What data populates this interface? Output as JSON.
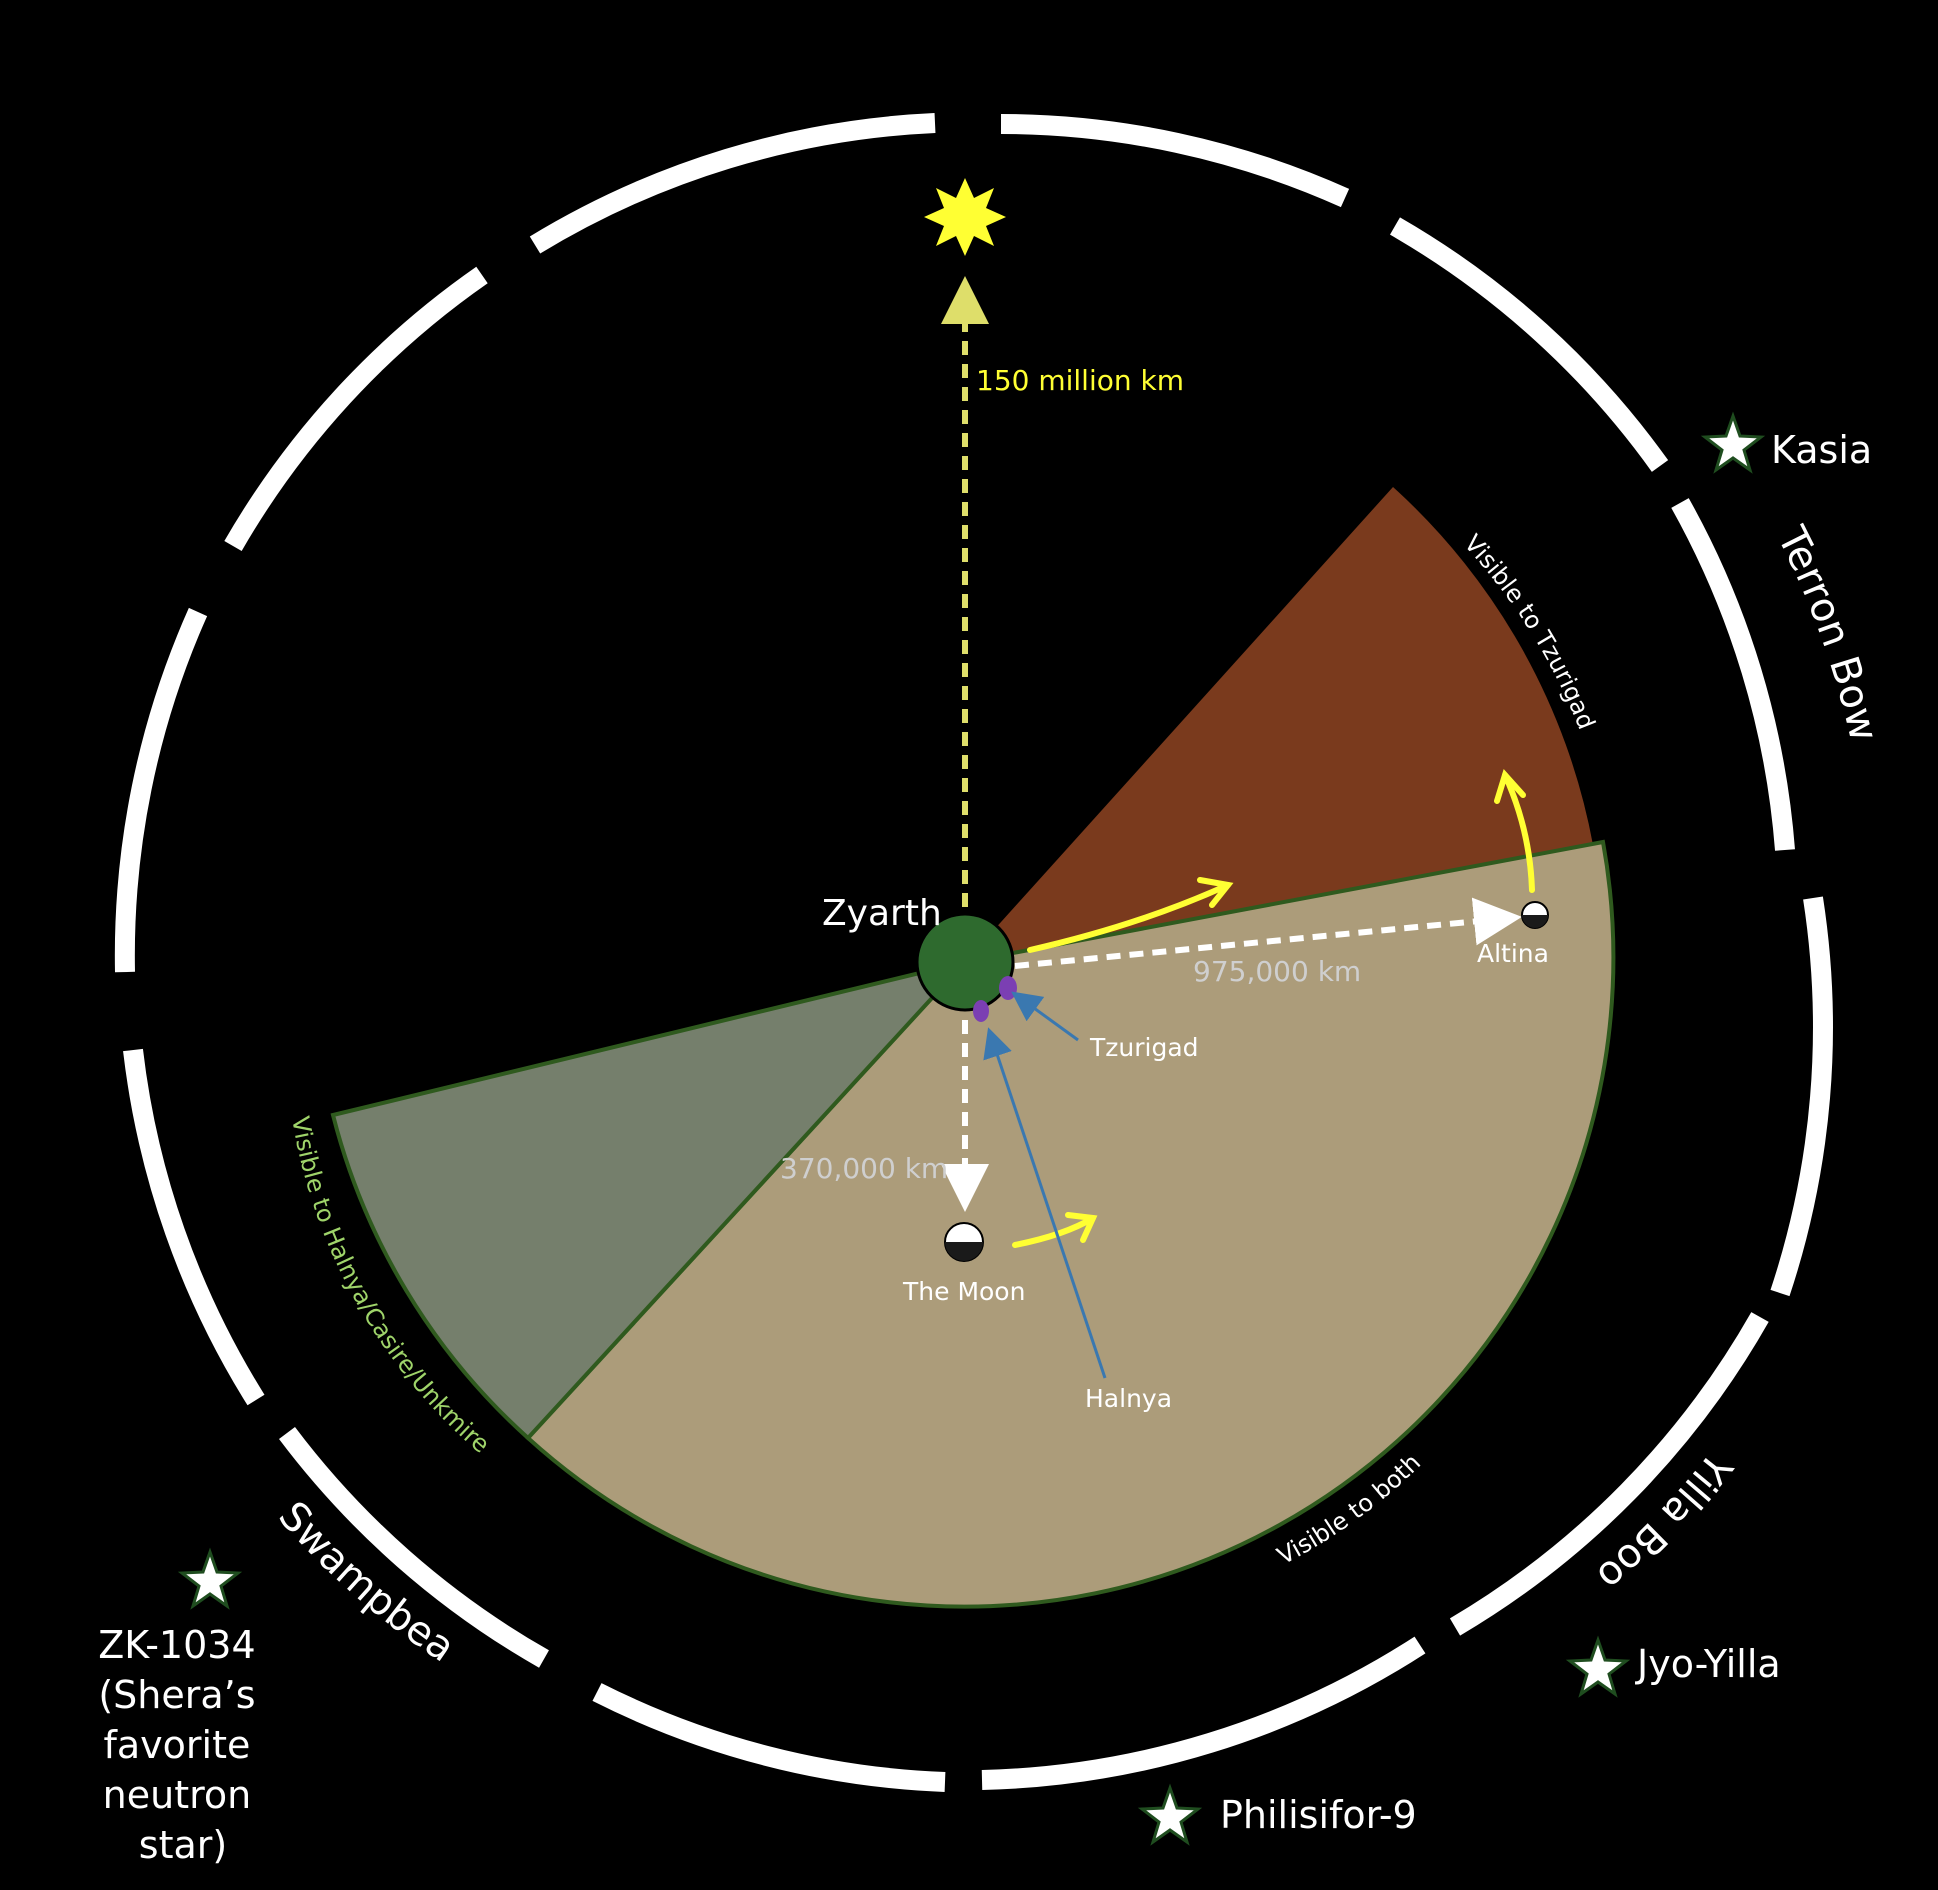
{
  "planet": {
    "label": "Zyarth",
    "color": "#2e6a2e"
  },
  "sun": {
    "color": "#ffff33",
    "distance_label": "150 million km"
  },
  "moon": {
    "label": "The Moon",
    "distance_label": "370,000 km"
  },
  "altina": {
    "label": "Altina",
    "distance_label": "975,000 km"
  },
  "sites": {
    "tzurigad": "Tzurigad",
    "halnya": "Halnya"
  },
  "regions": {
    "tzurigad_only": {
      "label": "Visible to Tzurigad",
      "color": "#7a3a1d"
    },
    "both": {
      "label": "Visible to both",
      "color": "#ac9c7a"
    },
    "halnya_only": {
      "label": "Visible to Halnya/Casire/Unkmire",
      "color": "#757f6c"
    }
  },
  "constellations": {
    "terron_bowl": "Terron Bowl",
    "yilla_boot": "Yilla Boot",
    "swampbear": "Swampbear"
  },
  "stars": {
    "kasia": "Kasia",
    "jyo_yilla": "Jyo-Yilla",
    "philisifor": "Philisifor-9",
    "zk": [
      "ZK-1034",
      "(Shera’s",
      "favorite",
      "neutron",
      "star)"
    ]
  },
  "colors": {
    "arrow_yellow": "#ffff33",
    "sun_line": "#dede6a",
    "pointer_blue": "#3a78b0",
    "site_purple": "#7b3fb3",
    "region_outline": "#2f5a1e",
    "region_text_green": "#9fd46a"
  }
}
